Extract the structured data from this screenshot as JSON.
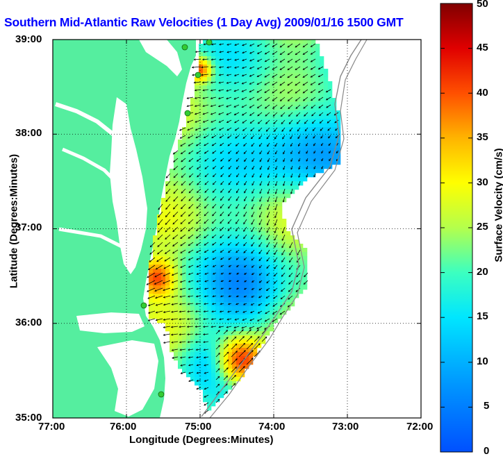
{
  "title": "Southern Mid-Atlantic Raw Velocities (1 Day Avg) 2009/01/16 1500 GMT",
  "x_axis": {
    "label": "Longitude (Degrees:Minutes)",
    "ticks": [
      "77:00",
      "76:00",
      "75:00",
      "74:00",
      "73:00",
      "72:00"
    ]
  },
  "y_axis": {
    "label": "Latitude (Degrees:Minutes)",
    "ticks": [
      "39:00",
      "38:00",
      "37:00",
      "36:00",
      "35:00"
    ]
  },
  "colorbar": {
    "label": "Surface Velocity (cm/s)",
    "ticks": [
      "50",
      "45",
      "40",
      "35",
      "30",
      "25",
      "20",
      "15",
      "10",
      "5",
      "0"
    ],
    "min": 0,
    "max": 50,
    "colormap": "jet"
  },
  "map": {
    "land_color": "#55ee9f",
    "water_color": "#ffffff",
    "grid": true,
    "lon_range": [
      -77,
      -72
    ],
    "lat_range": [
      35,
      39
    ]
  },
  "radar_sites": {
    "color": "#33cc33",
    "count": 6
  }
}
